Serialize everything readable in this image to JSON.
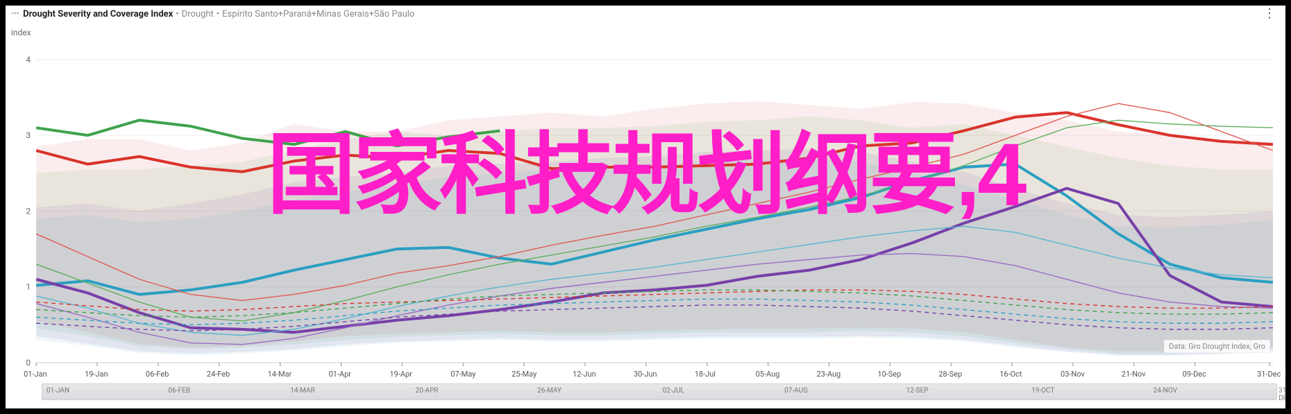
{
  "header": {
    "title_strong": "Drought Severity and Coverage Index",
    "title_sub1": "Drought",
    "title_sub2": "Espírito Santo+Paraná+Minas Gerais+São Paulo",
    "separator": "•"
  },
  "ylabel": "index",
  "attribution": "Data: Gro Drought Index, Gro",
  "watermark": "国家科技规划纲要,4",
  "chart": {
    "type": "line",
    "background_color": "#ffffff",
    "grid_color": "#eeeeee",
    "axis_color": "#cccccc",
    "tick_color": "#888888",
    "ylim": [
      0,
      4.2
    ],
    "yticks": [
      0,
      1,
      2,
      3,
      4
    ],
    "x_domain_days": 365,
    "x_ticks_primary": [
      {
        "label": "01-Jan",
        "day": 0
      },
      {
        "label": "19-Jan",
        "day": 18
      },
      {
        "label": "06-Feb",
        "day": 36
      },
      {
        "label": "24-Feb",
        "day": 54
      },
      {
        "label": "14-Mar",
        "day": 72
      },
      {
        "label": "01-Apr",
        "day": 90
      },
      {
        "label": "19-Apr",
        "day": 108
      },
      {
        "label": "07-May",
        "day": 126
      },
      {
        "label": "25-May",
        "day": 144
      },
      {
        "label": "12-Jun",
        "day": 162
      },
      {
        "label": "30-Jun",
        "day": 180
      },
      {
        "label": "18-Jul",
        "day": 198
      },
      {
        "label": "05-Aug",
        "day": 216
      },
      {
        "label": "23-Aug",
        "day": 234
      },
      {
        "label": "10-Sep",
        "day": 252
      },
      {
        "label": "28-Sep",
        "day": 270
      },
      {
        "label": "16-Oct",
        "day": 288
      },
      {
        "label": "03-Nov",
        "day": 306
      },
      {
        "label": "21-Nov",
        "day": 324
      },
      {
        "label": "09-Dec",
        "day": 342
      },
      {
        "label": "31-Dec",
        "day": 364
      }
    ],
    "x_ticks_secondary": [
      {
        "label": "01-JAN",
        "day": 0
      },
      {
        "label": "06-FEB",
        "day": 36
      },
      {
        "label": "14-MAR",
        "day": 72
      },
      {
        "label": "20-APR",
        "day": 109
      },
      {
        "label": "26-MAY",
        "day": 145
      },
      {
        "label": "02-JUL",
        "day": 182
      },
      {
        "label": "07-AUG",
        "day": 218
      },
      {
        "label": "12-SEP",
        "day": 254
      },
      {
        "label": "19-OCT",
        "day": 291
      },
      {
        "label": "24-NOV",
        "day": 327
      },
      {
        "label": "31-DEC",
        "day": 364
      }
    ],
    "bands": [
      {
        "name": "band-red",
        "fill": "#d9534f",
        "opacity": 0.1,
        "upper": [
          2.85,
          2.95,
          2.95,
          2.8,
          2.9,
          3.15,
          3.05,
          3.05,
          3.2,
          3.25,
          3.3,
          3.25,
          3.35,
          3.42,
          3.45,
          3.4,
          3.35,
          3.44,
          3.42,
          3.3,
          3.2,
          3.05,
          3.0,
          2.95,
          2.92
        ],
        "lower": [
          0.55,
          0.4,
          0.25,
          0.2,
          0.22,
          0.28,
          0.35,
          0.38,
          0.4,
          0.42,
          0.4,
          0.4,
          0.42,
          0.44,
          0.45,
          0.45,
          0.46,
          0.45,
          0.4,
          0.3,
          0.2,
          0.15,
          0.15,
          0.18,
          0.2
        ]
      },
      {
        "name": "band-green",
        "fill": "#4fa84f",
        "opacity": 0.1,
        "upper": [
          2.5,
          2.55,
          2.55,
          2.6,
          2.65,
          2.8,
          2.95,
          3.05,
          3.0,
          3.05,
          3.1,
          3.1,
          3.12,
          3.18,
          3.2,
          3.25,
          3.2,
          3.1,
          3.15,
          3.0,
          2.85,
          2.7,
          2.6,
          2.55,
          2.55
        ],
        "lower": [
          0.45,
          0.35,
          0.22,
          0.18,
          0.2,
          0.24,
          0.3,
          0.34,
          0.36,
          0.38,
          0.36,
          0.36,
          0.38,
          0.4,
          0.4,
          0.4,
          0.42,
          0.4,
          0.35,
          0.26,
          0.18,
          0.12,
          0.12,
          0.15,
          0.18
        ]
      },
      {
        "name": "band-purple",
        "fill": "#7a4aa8",
        "opacity": 0.1,
        "upper": [
          2.05,
          2.1,
          2.0,
          2.1,
          2.22,
          2.38,
          2.45,
          2.5,
          2.6,
          2.62,
          2.65,
          2.7,
          2.72,
          2.78,
          2.8,
          2.82,
          2.78,
          2.65,
          2.52,
          2.3,
          2.1,
          1.95,
          1.92,
          1.95,
          2.0
        ],
        "lower": [
          0.35,
          0.25,
          0.15,
          0.12,
          0.14,
          0.18,
          0.24,
          0.28,
          0.3,
          0.32,
          0.3,
          0.3,
          0.32,
          0.34,
          0.34,
          0.34,
          0.35,
          0.34,
          0.3,
          0.22,
          0.15,
          0.1,
          0.1,
          0.12,
          0.15
        ]
      },
      {
        "name": "band-blue",
        "fill": "#2e9bbf",
        "opacity": 0.08,
        "upper": [
          1.9,
          1.95,
          1.85,
          1.9,
          2.0,
          2.15,
          2.25,
          2.35,
          2.45,
          2.5,
          2.55,
          2.58,
          2.6,
          2.65,
          2.68,
          2.7,
          2.65,
          2.5,
          2.35,
          2.15,
          1.95,
          1.8,
          1.78,
          1.82,
          1.88
        ],
        "lower": [
          0.3,
          0.22,
          0.13,
          0.1,
          0.12,
          0.16,
          0.22,
          0.26,
          0.28,
          0.3,
          0.28,
          0.28,
          0.3,
          0.32,
          0.32,
          0.32,
          0.33,
          0.32,
          0.28,
          0.2,
          0.14,
          0.09,
          0.09,
          0.11,
          0.14
        ]
      }
    ],
    "series": [
      {
        "name": "series-green-thick",
        "color": "#3fa34d",
        "width": 4,
        "dash": "none",
        "end_day": 140,
        "y": [
          3.1,
          3.0,
          3.2,
          3.12,
          2.96,
          2.88,
          3.05,
          2.86,
          2.98,
          3.06,
          null,
          null,
          null,
          null,
          null,
          null,
          null,
          null,
          null,
          null,
          null,
          null,
          null,
          null,
          null
        ]
      },
      {
        "name": "series-red-thick",
        "color": "#d9332b",
        "width": 4,
        "dash": "none",
        "y": [
          2.8,
          2.62,
          2.72,
          2.58,
          2.52,
          2.66,
          2.74,
          2.7,
          2.8,
          2.76,
          2.56,
          2.58,
          2.58,
          2.6,
          2.62,
          2.7,
          2.86,
          2.9,
          3.06,
          3.24,
          3.3,
          3.14,
          3.0,
          2.92,
          2.88
        ]
      },
      {
        "name": "series-teal-thick",
        "color": "#2a9fc2",
        "width": 4,
        "dash": "none",
        "y": [
          1.02,
          1.08,
          0.9,
          0.96,
          1.06,
          1.22,
          1.36,
          1.5,
          1.52,
          1.38,
          1.3,
          1.46,
          1.62,
          1.76,
          1.9,
          2.02,
          2.18,
          2.4,
          2.58,
          2.62,
          2.2,
          1.7,
          1.3,
          1.12,
          1.06
        ]
      },
      {
        "name": "series-purple-thick",
        "color": "#773fa8",
        "width": 4,
        "dash": "none",
        "y": [
          1.1,
          0.92,
          0.66,
          0.46,
          0.44,
          0.4,
          0.48,
          0.56,
          0.62,
          0.7,
          0.8,
          0.92,
          0.96,
          1.02,
          1.14,
          1.22,
          1.36,
          1.58,
          1.84,
          2.06,
          2.3,
          2.1,
          1.15,
          0.8,
          0.74
        ]
      },
      {
        "name": "series-red-thin",
        "color": "#e05a52",
        "width": 1.4,
        "dash": "none",
        "y": [
          1.7,
          1.4,
          1.1,
          0.9,
          0.82,
          0.9,
          1.02,
          1.18,
          1.28,
          1.4,
          1.55,
          1.68,
          1.8,
          1.95,
          2.1,
          2.25,
          2.42,
          2.58,
          2.75,
          3.0,
          3.25,
          3.42,
          3.3,
          3.05,
          2.8
        ]
      },
      {
        "name": "series-green-thin",
        "color": "#5fae5f",
        "width": 1.4,
        "dash": "none",
        "y": [
          1.3,
          1.05,
          0.8,
          0.6,
          0.55,
          0.66,
          0.82,
          1.0,
          1.16,
          1.3,
          1.42,
          1.54,
          1.66,
          1.8,
          1.92,
          2.05,
          2.2,
          2.38,
          2.6,
          2.86,
          3.1,
          3.2,
          3.15,
          3.12,
          3.1
        ]
      },
      {
        "name": "series-blue-thin",
        "color": "#5ab5d1",
        "width": 1.4,
        "dash": "none",
        "y": [
          0.88,
          0.72,
          0.52,
          0.4,
          0.36,
          0.44,
          0.58,
          0.74,
          0.88,
          1.0,
          1.1,
          1.18,
          1.26,
          1.36,
          1.46,
          1.56,
          1.66,
          1.74,
          1.8,
          1.72,
          1.55,
          1.38,
          1.25,
          1.16,
          1.12
        ]
      },
      {
        "name": "series-purple-thin",
        "color": "#9a6cc5",
        "width": 1.4,
        "dash": "none",
        "y": [
          0.78,
          0.6,
          0.4,
          0.26,
          0.24,
          0.32,
          0.46,
          0.62,
          0.76,
          0.88,
          0.98,
          1.06,
          1.14,
          1.22,
          1.3,
          1.36,
          1.42,
          1.44,
          1.4,
          1.28,
          1.1,
          0.92,
          0.8,
          0.74,
          0.72
        ]
      },
      {
        "name": "series-red-dash",
        "color": "#d9332b",
        "width": 1.4,
        "dash": "6,5",
        "y": [
          0.8,
          0.75,
          0.7,
          0.68,
          0.7,
          0.74,
          0.78,
          0.8,
          0.82,
          0.84,
          0.86,
          0.88,
          0.9,
          0.92,
          0.94,
          0.96,
          0.96,
          0.94,
          0.9,
          0.84,
          0.78,
          0.74,
          0.72,
          0.72,
          0.74
        ]
      },
      {
        "name": "series-green-dash",
        "color": "#3fa34d",
        "width": 1.4,
        "dash": "6,5",
        "y": [
          0.7,
          0.66,
          0.62,
          0.6,
          0.62,
          0.66,
          0.72,
          0.78,
          0.84,
          0.88,
          0.9,
          0.92,
          0.94,
          0.96,
          0.96,
          0.94,
          0.92,
          0.88,
          0.82,
          0.76,
          0.7,
          0.66,
          0.64,
          0.64,
          0.66
        ]
      },
      {
        "name": "series-blue-dash",
        "color": "#2a9fc2",
        "width": 1.4,
        "dash": "6,5",
        "y": [
          0.6,
          0.56,
          0.52,
          0.5,
          0.52,
          0.56,
          0.62,
          0.68,
          0.72,
          0.76,
          0.78,
          0.8,
          0.82,
          0.84,
          0.84,
          0.82,
          0.8,
          0.76,
          0.7,
          0.64,
          0.58,
          0.54,
          0.52,
          0.52,
          0.54
        ]
      },
      {
        "name": "series-purple-dash",
        "color": "#773fa8",
        "width": 1.4,
        "dash": "6,5",
        "y": [
          0.52,
          0.48,
          0.44,
          0.42,
          0.44,
          0.48,
          0.54,
          0.6,
          0.64,
          0.68,
          0.7,
          0.72,
          0.74,
          0.76,
          0.76,
          0.74,
          0.72,
          0.68,
          0.62,
          0.56,
          0.5,
          0.46,
          0.44,
          0.44,
          0.46
        ]
      }
    ]
  }
}
